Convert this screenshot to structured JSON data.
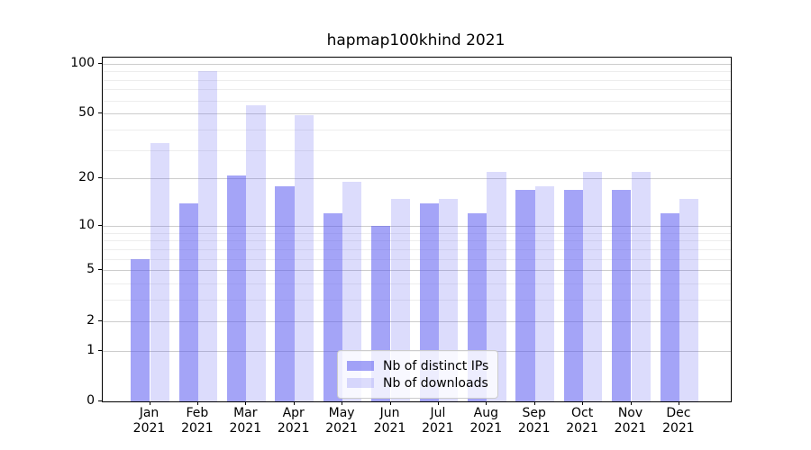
{
  "chart_data": {
    "type": "bar",
    "title": "hapmap100khind 2021",
    "categories": [
      "Jan 2021",
      "Feb 2021",
      "Mar 2021",
      "Apr 2021",
      "May 2021",
      "Jun 2021",
      "Jul 2021",
      "Aug 2021",
      "Sep 2021",
      "Oct 2021",
      "Nov 2021",
      "Dec 2021"
    ],
    "x_tick_months": [
      "Jan",
      "Feb",
      "Mar",
      "Apr",
      "May",
      "Jun",
      "Jul",
      "Aug",
      "Sep",
      "Oct",
      "Nov",
      "Dec"
    ],
    "x_tick_year": "2021",
    "series": [
      {
        "name": "Nb of distinct IPs",
        "color": "rgba(90,90,240,0.55)",
        "color_hex_on_white": "#a9a9f6",
        "values": [
          6,
          14,
          21,
          18,
          12,
          10,
          14,
          12,
          17,
          17,
          17,
          12
        ]
      },
      {
        "name": "Nb of downloads",
        "color": "rgba(90,90,240,0.21)",
        "color_hex_on_white": "#dcdcfa",
        "values": [
          33,
          90,
          56,
          49,
          19,
          15,
          15,
          22,
          18,
          22,
          22,
          15
        ]
      }
    ],
    "yscale": "log1p",
    "ylim": [
      0,
      109
    ],
    "yticks": [
      100,
      50,
      20,
      10,
      5,
      2,
      1,
      0
    ],
    "minor_gridlines": [
      3,
      4,
      6,
      7,
      8,
      9,
      30,
      40,
      60,
      70,
      80,
      90
    ],
    "grid": true,
    "legend_position": "lower center"
  }
}
